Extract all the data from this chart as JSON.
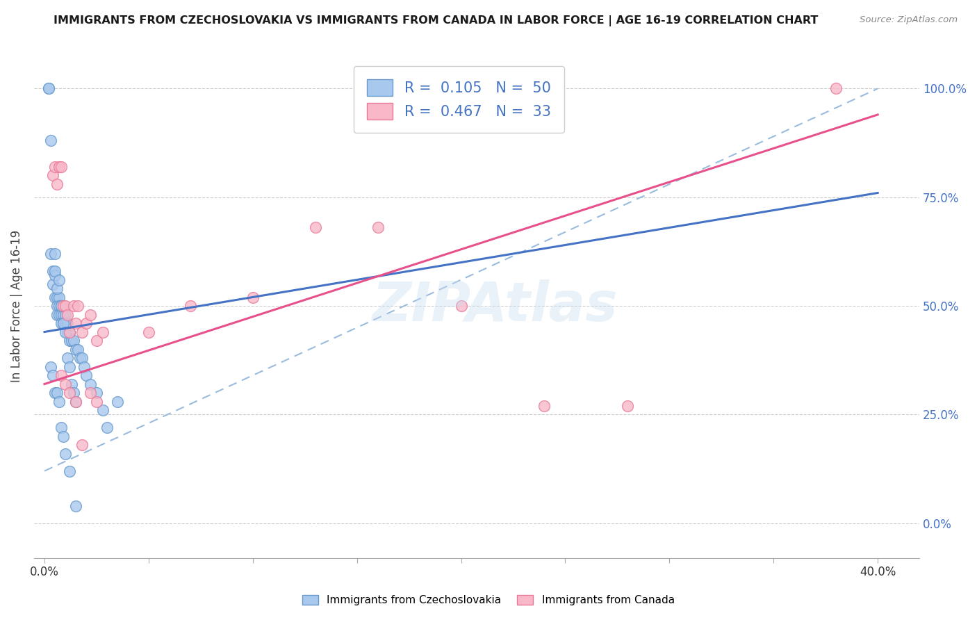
{
  "title": "IMMIGRANTS FROM CZECHOSLOVAKIA VS IMMIGRANTS FROM CANADA IN LABOR FORCE | AGE 16-19 CORRELATION CHART",
  "source": "Source: ZipAtlas.com",
  "ylabel_left": "In Labor Force | Age 16-19",
  "xlim": [
    -0.005,
    0.42
  ],
  "ylim": [
    -0.08,
    1.08
  ],
  "x_ticks": [
    0.0,
    0.05,
    0.1,
    0.15,
    0.2,
    0.25,
    0.3,
    0.35,
    0.4
  ],
  "x_tick_labels_show": [
    "0.0%",
    "",
    "",
    "",
    "",
    "",
    "",
    "",
    "40.0%"
  ],
  "y_ticks_right": [
    0.0,
    0.25,
    0.5,
    0.75,
    1.0
  ],
  "y_tick_labels_right": [
    "0.0%",
    "25.0%",
    "50.0%",
    "75.0%",
    "100.0%"
  ],
  "blue_color": "#A8C8EE",
  "blue_edge_color": "#6699CC",
  "pink_color": "#F8B8C8",
  "pink_edge_color": "#E87898",
  "blue_line_color": "#4472C4",
  "pink_line_color": "#E8508C",
  "dashed_line_color": "#99BBDD",
  "legend_color": "#4472C4",
  "watermark": "ZIPAtlas",
  "background_color": "#FFFFFF",
  "grid_color": "#CCCCCC",
  "blue_x": [
    0.002,
    0.002,
    0.003,
    0.003,
    0.004,
    0.004,
    0.005,
    0.005,
    0.005,
    0.006,
    0.006,
    0.006,
    0.007,
    0.007,
    0.007,
    0.008,
    0.008,
    0.008,
    0.009,
    0.009,
    0.01,
    0.01,
    0.011,
    0.011,
    0.012,
    0.012,
    0.013,
    0.014,
    0.015,
    0.016,
    0.017,
    0.018,
    0.019,
    0.02,
    0.022,
    0.025,
    0.028,
    0.03,
    0.035,
    0.005,
    0.006,
    0.007,
    0.008,
    0.009,
    0.01,
    0.011,
    0.012,
    0.013,
    0.014,
    0.015
  ],
  "blue_y": [
    1.0,
    1.0,
    0.88,
    0.62,
    0.58,
    0.55,
    0.62,
    0.57,
    0.52,
    0.52,
    0.5,
    0.48,
    0.52,
    0.5,
    0.48,
    0.5,
    0.48,
    0.46,
    0.48,
    0.46,
    0.48,
    0.46,
    0.46,
    0.44,
    0.44,
    0.42,
    0.42,
    0.42,
    0.4,
    0.4,
    0.38,
    0.38,
    0.36,
    0.34,
    0.32,
    0.3,
    0.26,
    0.22,
    0.28,
    0.58,
    0.54,
    0.56,
    0.5,
    0.46,
    0.44,
    0.38,
    0.36,
    0.32,
    0.3,
    0.28
  ],
  "blue_y_extra": [
    0.36,
    0.34,
    0.3,
    0.3,
    0.28,
    0.22,
    0.2,
    0.16,
    0.12,
    0.04
  ],
  "blue_x_extra": [
    0.003,
    0.004,
    0.005,
    0.006,
    0.007,
    0.008,
    0.009,
    0.01,
    0.012,
    0.015
  ],
  "pink_x": [
    0.004,
    0.005,
    0.006,
    0.007,
    0.008,
    0.009,
    0.01,
    0.011,
    0.012,
    0.014,
    0.015,
    0.016,
    0.018,
    0.02,
    0.022,
    0.025,
    0.028,
    0.05,
    0.07,
    0.1,
    0.13,
    0.16,
    0.2,
    0.24,
    0.28,
    0.38,
    0.008,
    0.01,
    0.012,
    0.015,
    0.018,
    0.022,
    0.025
  ],
  "pink_y": [
    0.8,
    0.82,
    0.78,
    0.82,
    0.82,
    0.5,
    0.5,
    0.48,
    0.44,
    0.5,
    0.46,
    0.5,
    0.44,
    0.46,
    0.48,
    0.42,
    0.44,
    0.44,
    0.5,
    0.52,
    0.68,
    0.68,
    0.5,
    0.27,
    0.27,
    1.0,
    0.34,
    0.32,
    0.3,
    0.28,
    0.18,
    0.3,
    0.28
  ]
}
